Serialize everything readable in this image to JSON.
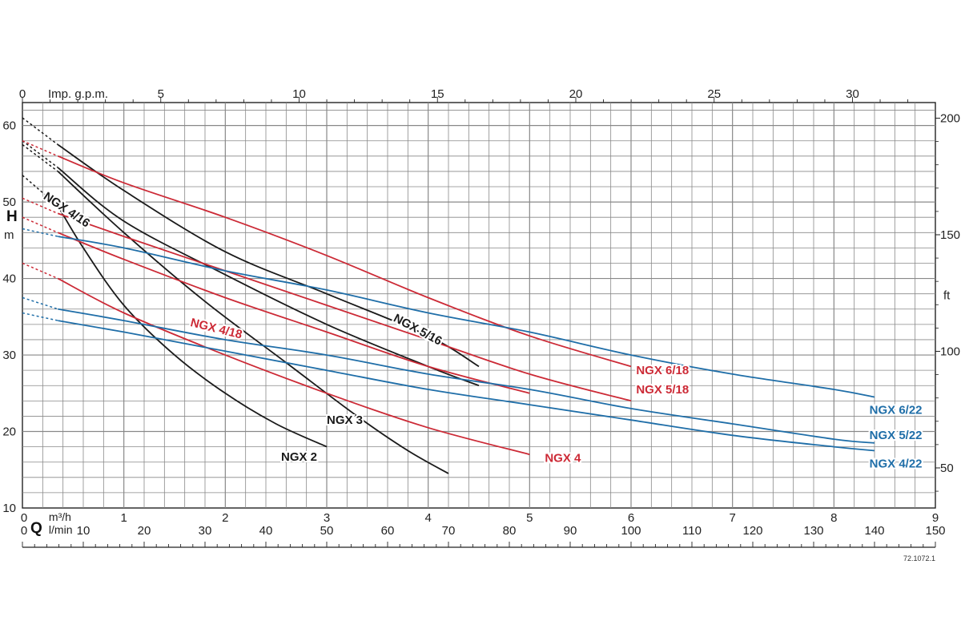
{
  "chart_data": {
    "type": "line",
    "title": "",
    "reference": "72.1072.1",
    "colors": {
      "black": "#1a1a1a",
      "red": "#cc2a36",
      "blue": "#1f6ea8",
      "grid": "#888888"
    },
    "axes": {
      "y_left": {
        "label": "H",
        "unit": "m",
        "range": [
          10,
          63
        ],
        "ticks": [
          10,
          20,
          30,
          40,
          50,
          60
        ]
      },
      "y_right": {
        "unit": "ft",
        "ticks": [
          50,
          100,
          150,
          200
        ],
        "tick_labels": [
          "50",
          "100",
          "150",
          "200"
        ]
      },
      "x_bottom_m3h": {
        "unit": "m³/h",
        "range": [
          0,
          9
        ],
        "ticks": [
          0,
          1,
          2,
          3,
          4,
          5,
          6,
          7,
          8,
          9
        ]
      },
      "x_bottom_lmin": {
        "label": "Q",
        "unit": "l/min",
        "range": [
          0,
          150
        ],
        "ticks": [
          0,
          10,
          20,
          30,
          40,
          50,
          60,
          70,
          80,
          90,
          100,
          110,
          120,
          130,
          140,
          150
        ]
      },
      "x_top_gpm": {
        "unit": "Imp. g.p.m.",
        "range": [
          0,
          33
        ],
        "ticks": [
          0,
          5,
          10,
          15,
          20,
          25,
          30
        ]
      }
    },
    "series": [
      {
        "name": "NGX 2",
        "color": "black",
        "dashed": [
          [
            0,
            53.5
          ],
          [
            0.35,
            49.5
          ]
        ],
        "points": [
          [
            0.35,
            49.5
          ],
          [
            0.6,
            44
          ],
          [
            1.0,
            36.5
          ],
          [
            1.5,
            30
          ],
          [
            2.0,
            25
          ],
          [
            2.5,
            21
          ],
          [
            3.0,
            18
          ]
        ],
        "label_pos": [
          2.55,
          16.2
        ]
      },
      {
        "name": "NGX 3",
        "color": "black",
        "dashed": [
          [
            0,
            57.5
          ],
          [
            0.35,
            54
          ]
        ],
        "points": [
          [
            0.35,
            54
          ],
          [
            1.0,
            46
          ],
          [
            1.8,
            37
          ],
          [
            2.6,
            29
          ],
          [
            3.3,
            22
          ],
          [
            3.8,
            17.5
          ],
          [
            4.2,
            14.5
          ]
        ],
        "label_pos": [
          3.0,
          21.0
        ]
      },
      {
        "name": "NGX 4/16",
        "color": "black",
        "dashed": [
          [
            0,
            58
          ],
          [
            0.35,
            54.5
          ]
        ],
        "points": [
          [
            0.35,
            54.5
          ],
          [
            1.0,
            47.5
          ],
          [
            2.0,
            40.5
          ],
          [
            3.0,
            34
          ],
          [
            4.0,
            28.5
          ],
          [
            4.5,
            26
          ]
        ],
        "label_pos": [
          0.2,
          50.5
        ],
        "label_rotate": 34
      },
      {
        "name": "NGX 5/16",
        "color": "black",
        "dashed": [
          [
            0,
            61
          ],
          [
            0.35,
            57.5
          ]
        ],
        "points": [
          [
            0.35,
            57.5
          ],
          [
            1.0,
            51.5
          ],
          [
            2.0,
            43.5
          ],
          [
            3.0,
            38
          ],
          [
            4.0,
            32.5
          ],
          [
            4.5,
            28.5
          ]
        ],
        "label_pos": [
          3.65,
          34.5
        ],
        "label_rotate": 28
      },
      {
        "name": "NGX 4",
        "color": "red",
        "dashed": [
          [
            0,
            42
          ],
          [
            0.35,
            40
          ]
        ],
        "points": [
          [
            0.35,
            40
          ],
          [
            1.0,
            35.5
          ],
          [
            2.0,
            30
          ],
          [
            3.0,
            25
          ],
          [
            4.0,
            20.5
          ],
          [
            5.0,
            17
          ]
        ],
        "label_pos": [
          5.15,
          16.0
        ]
      },
      {
        "name": "NGX 4/18",
        "color": "red",
        "dashed": [
          [
            0,
            48
          ],
          [
            0.35,
            46
          ]
        ],
        "points": [
          [
            0.35,
            46
          ],
          [
            1.0,
            42.5
          ],
          [
            2.0,
            37.5
          ],
          [
            3.0,
            33
          ],
          [
            4.0,
            28.5
          ],
          [
            5.0,
            25
          ]
        ],
        "label_pos": [
          1.65,
          33.8
        ],
        "label_rotate": 14
      },
      {
        "name": "NGX 5/18",
        "color": "red",
        "dashed": [
          [
            0,
            50.5
          ],
          [
            0.35,
            48.5
          ]
        ],
        "points": [
          [
            0.35,
            48.5
          ],
          [
            1.0,
            45.5
          ],
          [
            2.0,
            41
          ],
          [
            3.0,
            36.5
          ],
          [
            4.0,
            32
          ],
          [
            5.0,
            27.5
          ],
          [
            6.0,
            24
          ]
        ],
        "label_pos": [
          6.05,
          25.0
        ]
      },
      {
        "name": "NGX 6/18",
        "color": "red",
        "dashed": [
          [
            0,
            58
          ],
          [
            0.35,
            56
          ]
        ],
        "points": [
          [
            0.35,
            56
          ],
          [
            1.0,
            52.5
          ],
          [
            2.0,
            48
          ],
          [
            3.0,
            43
          ],
          [
            4.0,
            37.5
          ],
          [
            5.0,
            32.5
          ],
          [
            6.0,
            28.5
          ]
        ],
        "label_pos": [
          6.05,
          27.5
        ]
      },
      {
        "name": "NGX 4/22",
        "color": "blue",
        "dashed": [
          [
            0,
            35.5
          ],
          [
            0.35,
            34.5
          ]
        ],
        "points": [
          [
            0.35,
            34.5
          ],
          [
            1.0,
            33
          ],
          [
            2.0,
            30.5
          ],
          [
            3.0,
            28
          ],
          [
            4.0,
            25.5
          ],
          [
            5.0,
            23.5
          ],
          [
            6.0,
            21.5
          ],
          [
            7.0,
            19.5
          ],
          [
            8.0,
            18
          ],
          [
            8.4,
            17.5
          ]
        ],
        "label_pos": [
          8.35,
          15.3
        ]
      },
      {
        "name": "NGX 5/22",
        "color": "blue",
        "dashed": [
          [
            0,
            37.5
          ],
          [
            0.35,
            36
          ]
        ],
        "points": [
          [
            0.35,
            36
          ],
          [
            1.0,
            34.5
          ],
          [
            2.0,
            32
          ],
          [
            3.0,
            30
          ],
          [
            4.0,
            27.5
          ],
          [
            5.0,
            25.5
          ],
          [
            6.0,
            23
          ],
          [
            7.0,
            21
          ],
          [
            8.0,
            19
          ],
          [
            8.4,
            18.5
          ]
        ],
        "label_pos": [
          8.35,
          19.0
        ]
      },
      {
        "name": "NGX 6/22",
        "color": "blue",
        "dashed": [
          [
            0,
            46.5
          ],
          [
            0.35,
            45.5
          ]
        ],
        "points": [
          [
            0.35,
            45.5
          ],
          [
            1.0,
            44
          ],
          [
            2.0,
            41
          ],
          [
            3.0,
            38.5
          ],
          [
            4.0,
            35.5
          ],
          [
            5.0,
            33
          ],
          [
            6.0,
            30
          ],
          [
            7.0,
            27.5
          ],
          [
            8.0,
            25.5
          ],
          [
            8.4,
            24.5
          ]
        ],
        "label_pos": [
          8.35,
          22.3
        ]
      }
    ]
  }
}
